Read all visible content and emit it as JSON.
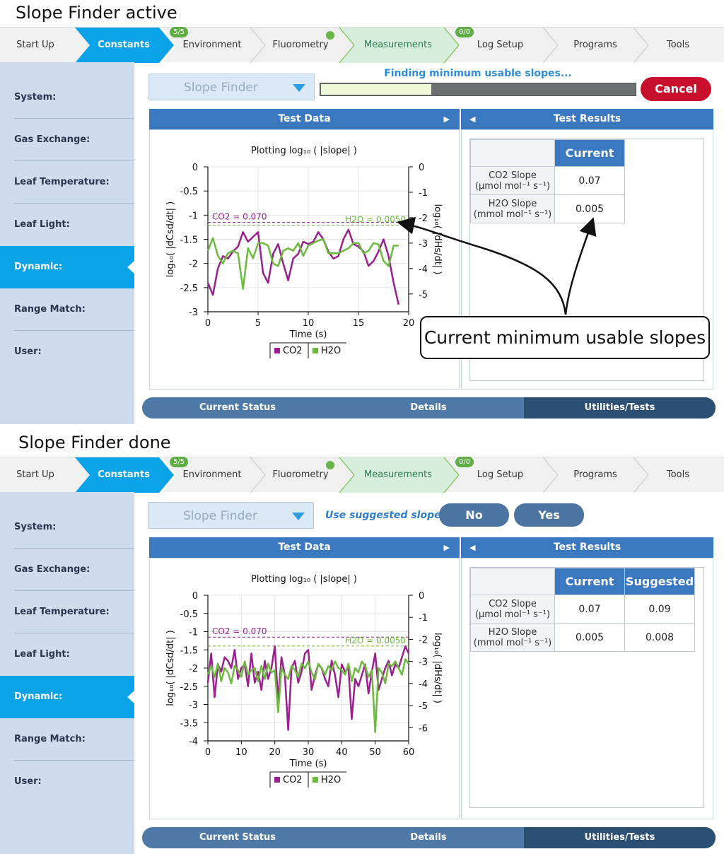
{
  "panels": [
    {
      "title": "Slope Finder active",
      "tabs": [
        {
          "label": "Start Up"
        },
        {
          "label": "Constants"
        },
        {
          "label": "Environment",
          "badge": "5/5"
        },
        {
          "label": "Fluorometry"
        },
        {
          "label": "Measurements"
        },
        {
          "label": "Log Setup",
          "badge": "0/0"
        },
        {
          "label": "Programs"
        },
        {
          "label": "Tools"
        }
      ],
      "sidebar": [
        "System:",
        "Gas Exchange:",
        "Leaf Temperature:",
        "Leaf Light:",
        "Dynamic:",
        "Range Match:",
        "User:"
      ],
      "dropdown_value": "Slope Finder",
      "status_text": "Finding minimum usable slopes...",
      "progress": 0.35,
      "cancel_label": "Cancel",
      "test_data_header": "Test Data",
      "test_results_header": "Test Results",
      "results": {
        "columns": [
          "Current"
        ],
        "rows": [
          {
            "label1": "CO2 Slope",
            "label2": "(µmol mol⁻¹ s⁻¹)",
            "values": [
              "0.07"
            ]
          },
          {
            "label1": "H2O Slope",
            "label2": "(mmol mol⁻¹ s⁻¹)",
            "values": [
              "0.005"
            ]
          }
        ]
      },
      "bottom_tabs": [
        "Current Status",
        "Details",
        "Utilities/Tests"
      ],
      "callout": "Current minimum usable slopes"
    },
    {
      "title": "Slope Finder done",
      "tabs": [
        {
          "label": "Start Up"
        },
        {
          "label": "Constants"
        },
        {
          "label": "Environment",
          "badge": "5/5"
        },
        {
          "label": "Fluorometry"
        },
        {
          "label": "Measurements"
        },
        {
          "label": "Log Setup",
          "badge": "0/0"
        },
        {
          "label": "Programs"
        },
        {
          "label": "Tools"
        }
      ],
      "sidebar": [
        "System:",
        "Gas Exchange:",
        "Leaf Temperature:",
        "Leaf Light:",
        "Dynamic:",
        "Range Match:",
        "User:"
      ],
      "dropdown_value": "Slope Finder",
      "question": "Use suggested slopes?",
      "no_label": "No",
      "yes_label": "Yes",
      "test_data_header": "Test Data",
      "test_results_header": "Test Results",
      "results": {
        "columns": [
          "Current",
          "Suggested"
        ],
        "rows": [
          {
            "label1": "CO2 Slope",
            "label2": "(µmol mol⁻¹ s⁻¹)",
            "values": [
              "0.07",
              "0.09"
            ]
          },
          {
            "label1": "H2O Slope",
            "label2": "(mmol mol⁻¹ s⁻¹)",
            "values": [
              "0.005",
              "0.008"
            ]
          }
        ]
      },
      "bottom_tabs": [
        "Current Status",
        "Details",
        "Utilities/Tests"
      ]
    }
  ],
  "chart_data": [
    {
      "type": "line",
      "title": "Plotting log₁₀ ( |slope| )",
      "xlabel": "Time (s)",
      "ylabel_left": "log₁₀( |dCsd/dt| )",
      "ylabel_right": "log₁₀( |dHs/dt| )",
      "xlim": [
        0,
        20
      ],
      "ylim_left": [
        -3,
        0
      ],
      "ylim_right": [
        -5.7,
        0
      ],
      "x_ticks": [
        "0",
        "5",
        "10",
        "15",
        "20"
      ],
      "y_left_ticks": [
        "0",
        "-0.5",
        "-1",
        "-1.5",
        "-2",
        "-2.5",
        "-3"
      ],
      "y_right_ticks": [
        "0",
        "-1",
        "-2",
        "-3",
        "-4",
        "-5"
      ],
      "colors": {
        "CO2": "#99208e",
        "H2O": "#6cba3d"
      },
      "thresholds": [
        {
          "label": "CO2 = 0.070",
          "axis": "left",
          "value": -1.15,
          "color": "#99208e"
        },
        {
          "label": "H2O = 0.0050",
          "axis": "right",
          "value": -2.3,
          "color": "#6cba3d"
        }
      ],
      "legend": [
        "CO2",
        "H2O"
      ],
      "series": [
        {
          "name": "CO2",
          "axis": "left",
          "x": [
            0,
            0.5,
            1,
            1.5,
            2,
            2.5,
            3,
            3.5,
            4,
            4.5,
            5,
            5.5,
            6,
            6.5,
            7,
            7.5,
            8,
            8.5,
            9,
            9.5,
            10,
            10.5,
            11,
            11.5,
            12,
            12.5,
            13,
            13.5,
            14,
            14.5,
            15,
            15.5,
            16,
            16.5,
            17,
            17.5,
            18,
            18.5,
            19
          ],
          "y": [
            -2.4,
            -2.65,
            -2.1,
            -1.85,
            -1.9,
            -1.75,
            -1.65,
            -1.35,
            -1.55,
            -1.45,
            -1.35,
            -2.2,
            -2.4,
            -1.8,
            -1.6,
            -2.0,
            -2.35,
            -1.9,
            -1.8,
            -1.55,
            -1.6,
            -1.55,
            -1.35,
            -1.5,
            -1.75,
            -1.9,
            -1.85,
            -1.5,
            -1.3,
            -1.6,
            -1.65,
            -1.75,
            -2.05,
            -1.95,
            -1.75,
            -1.5,
            -1.85,
            -2.4,
            -2.85
          ]
        },
        {
          "name": "H2O",
          "axis": "right",
          "x": [
            0,
            0.5,
            1,
            1.5,
            2,
            2.5,
            3,
            3.5,
            4,
            4.5,
            5,
            5.5,
            6,
            6.5,
            7,
            7.5,
            8,
            8.5,
            9,
            9.5,
            10,
            10.5,
            11,
            11.5,
            12,
            12.5,
            13,
            13.5,
            14,
            14.5,
            15,
            15.5,
            16,
            16.5,
            17,
            17.5,
            18,
            18.5,
            19
          ],
          "y": [
            -3.3,
            -2.8,
            -3.5,
            -3.8,
            -3.4,
            -3.3,
            -3.4,
            -4.8,
            -3.2,
            -3.6,
            -3.0,
            -3.0,
            -3.1,
            -3.8,
            -3.9,
            -3.3,
            -3.2,
            -3.3,
            -3.0,
            -3.5,
            -3.1,
            -3.0,
            -2.9,
            -2.85,
            -3.4,
            -3.4,
            -3.4,
            -3.3,
            -3.2,
            -3.0,
            -3.0,
            -3.4,
            -3.3,
            -3.0,
            -3.05,
            -3.7,
            -3.9,
            -3.1,
            -3.1
          ]
        }
      ]
    },
    {
      "type": "line",
      "title": "Plotting log₁₀ ( |slope| )",
      "xlabel": "Time (s)",
      "ylabel_left": "log₁₀( |dCsd/dt| )",
      "ylabel_right": "log₁₀( |dHs/dt| )",
      "xlim": [
        0,
        60
      ],
      "ylim_left": [
        -4,
        0
      ],
      "ylim_right": [
        -6.6,
        0
      ],
      "x_ticks": [
        "0",
        "10",
        "20",
        "30",
        "40",
        "50",
        "60"
      ],
      "y_left_ticks": [
        "0",
        "-0.5",
        "-1",
        "-1.5",
        "-2",
        "-2.5",
        "-3",
        "-3.5",
        "-4"
      ],
      "y_right_ticks": [
        "0",
        "-1",
        "-2",
        "-3",
        "-4",
        "-5",
        "-6"
      ],
      "colors": {
        "CO2": "#99208e",
        "H2O": "#6cba3d"
      },
      "thresholds": [
        {
          "label": "CO2 = 0.070",
          "axis": "left",
          "value": -1.15,
          "color": "#99208e"
        },
        {
          "label": "H2O = 0.0050",
          "axis": "right",
          "value": -2.3,
          "color": "#6cba3d"
        }
      ],
      "legend": [
        "CO2",
        "H2O"
      ],
      "series": [
        {
          "name": "CO2",
          "axis": "left",
          "x": [
            0,
            1,
            2,
            3,
            4,
            5,
            6,
            7,
            8,
            9,
            10,
            11,
            12,
            13,
            14,
            15,
            16,
            17,
            18,
            19,
            20,
            21,
            22,
            23,
            24,
            25,
            26,
            27,
            28,
            29,
            30,
            31,
            32,
            33,
            34,
            35,
            36,
            37,
            38,
            39,
            40,
            41,
            42,
            43,
            44,
            45,
            46,
            47,
            48,
            49,
            50,
            51,
            52,
            53,
            54,
            55,
            56,
            57,
            58,
            59,
            60
          ],
          "y": [
            -2.4,
            -1.6,
            -2.8,
            -1.9,
            -2.1,
            -1.7,
            -1.8,
            -2.0,
            -1.5,
            -2.3,
            -2.0,
            -1.9,
            -2.5,
            -1.6,
            -2.4,
            -2.1,
            -2.6,
            -1.8,
            -2.3,
            -2.0,
            -1.4,
            -2.9,
            -1.7,
            -2.2,
            -3.7,
            -2.0,
            -1.8,
            -2.4,
            -2.1,
            -1.6,
            -1.5,
            -2.6,
            -2.2,
            -1.9,
            -2.0,
            -2.3,
            -2.5,
            -1.8,
            -2.2,
            -2.8,
            -1.9,
            -2.1,
            -2.0,
            -3.4,
            -2.3,
            -2.5,
            -2.2,
            -1.9,
            -2.7,
            -2.1,
            -1.6,
            -2.6,
            -2.3,
            -2.0,
            -1.8,
            -2.2,
            -1.9,
            -2.0,
            -1.7,
            -1.4,
            -1.6
          ]
        },
        {
          "name": "H2O",
          "axis": "right",
          "x": [
            0,
            1,
            2,
            3,
            4,
            5,
            6,
            7,
            8,
            9,
            10,
            11,
            12,
            13,
            14,
            15,
            16,
            17,
            18,
            19,
            20,
            21,
            22,
            23,
            24,
            25,
            26,
            27,
            28,
            29,
            30,
            31,
            32,
            33,
            34,
            35,
            36,
            37,
            38,
            39,
            40,
            41,
            42,
            43,
            44,
            45,
            46,
            47,
            48,
            49,
            50,
            51,
            52,
            53,
            54,
            55,
            56,
            57,
            58,
            59,
            60
          ],
          "y": [
            -3.6,
            -3.2,
            -3.7,
            -3.1,
            -3.9,
            -3.3,
            -3.5,
            -4.0,
            -3.2,
            -3.4,
            -3.7,
            -3.0,
            -3.6,
            -3.4,
            -3.3,
            -3.9,
            -3.2,
            -3.8,
            -3.1,
            -3.5,
            -3.4,
            -5.3,
            -3.3,
            -3.6,
            -3.8,
            -3.2,
            -3.4,
            -3.7,
            -3.1,
            -3.3,
            -3.0,
            -3.5,
            -3.8,
            -3.1,
            -3.3,
            -3.6,
            -3.2,
            -3.4,
            -3.0,
            -3.3,
            -3.4,
            -3.6,
            -3.1,
            -3.9,
            -3.3,
            -3.5,
            -3.0,
            -3.2,
            -3.7,
            -3.4,
            -6.2,
            -3.3,
            -3.5,
            -4.0,
            -3.1,
            -3.2,
            -3.0,
            -3.3,
            -3.6,
            -2.9,
            -3.1
          ]
        }
      ]
    }
  ]
}
